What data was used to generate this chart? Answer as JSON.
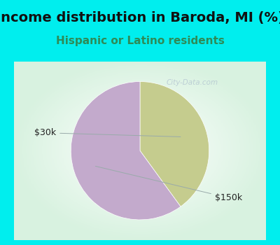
{
  "title": "Income distribution in Baroda, MI (%)",
  "subtitle": "Hispanic or Latino residents",
  "title_bg_color": "#00EEEE",
  "plot_bg_color": "#FFFFFF",
  "title_color": "#111111",
  "subtitle_color": "#2E8B57",
  "slices": [
    {
      "label": "$30k",
      "value": 40,
      "color": "#C5CC8E"
    },
    {
      "label": "$150k",
      "value": 60,
      "color": "#C3AACC"
    }
  ],
  "label_fontsize": 9,
  "title_fontsize": 14,
  "subtitle_fontsize": 11,
  "watermark": "City-Data.com",
  "watermark_color": "#AABBCC",
  "start_angle": 90,
  "counterclock": false
}
